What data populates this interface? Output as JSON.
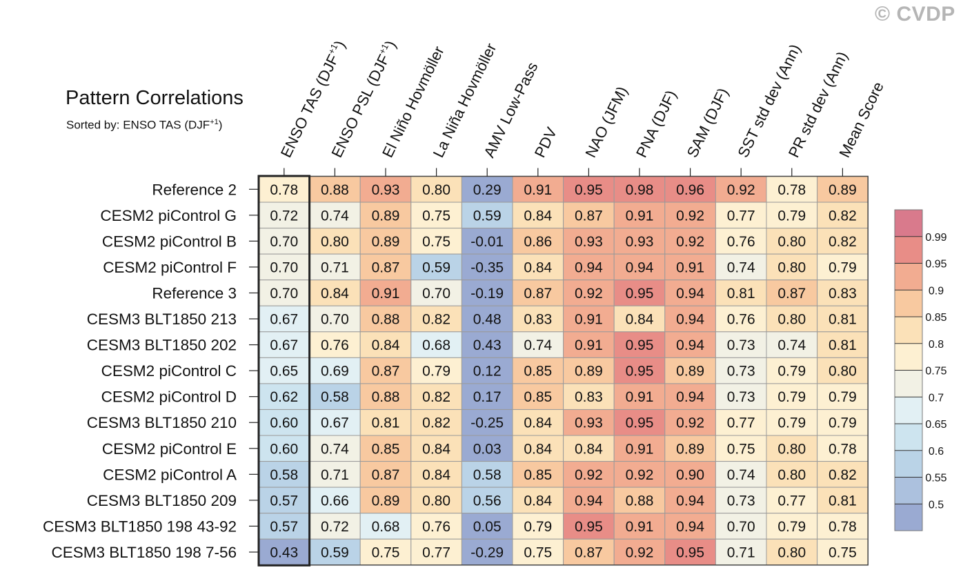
{
  "watermark": "© CVDP",
  "chart_data": {
    "type": "heatmap",
    "title": "Pattern Correlations",
    "subtitle_prefix": "Sorted by: ENSO TAS (DJF",
    "subtitle_sup": "+1",
    "subtitle_suffix": ")",
    "columns": [
      {
        "label": "ENSO TAS (DJF",
        "sup": "+1",
        "tail": ")"
      },
      {
        "label": "ENSO PSL (DJF",
        "sup": "+1",
        "tail": ")"
      },
      {
        "label": "El Niño Hovmöller",
        "sup": "",
        "tail": ""
      },
      {
        "label": "La Niña Hovmöller",
        "sup": "",
        "tail": ""
      },
      {
        "label": "AMV Low-Pass",
        "sup": "",
        "tail": ""
      },
      {
        "label": "PDV",
        "sup": "",
        "tail": ""
      },
      {
        "label": "NAO (JFM)",
        "sup": "",
        "tail": ""
      },
      {
        "label": "PNA (DJF)",
        "sup": "",
        "tail": ""
      },
      {
        "label": "SAM (DJF)",
        "sup": "",
        "tail": ""
      },
      {
        "label": "SST std dev (Ann)",
        "sup": "",
        "tail": ""
      },
      {
        "label": "PR std dev (Ann)",
        "sup": "",
        "tail": ""
      },
      {
        "label": "Mean Score",
        "sup": "",
        "tail": ""
      }
    ],
    "rows": [
      "Reference 2",
      "CESM2 piControl G",
      "CESM2 piControl B",
      "CESM2 piControl F",
      "Reference 3",
      "CESM3 BLT1850 213",
      "CESM3 BLT1850 202",
      "CESM2 piControl C",
      "CESM2 piControl D",
      "CESM3 BLT1850 210",
      "CESM2 piControl E",
      "CESM2 piControl A",
      "CESM3 BLT1850 209",
      "CESM3 BLT1850 198 43-92",
      "CESM3 BLT1850 198 7-56"
    ],
    "values": [
      [
        "0.78",
        "0.88",
        "0.93",
        "0.80",
        "0.29",
        "0.91",
        "0.95",
        "0.98",
        "0.96",
        "0.92",
        "0.78",
        "0.89"
      ],
      [
        "0.72",
        "0.74",
        "0.89",
        "0.75",
        "0.59",
        "0.84",
        "0.87",
        "0.91",
        "0.92",
        "0.77",
        "0.79",
        "0.82"
      ],
      [
        "0.70",
        "0.80",
        "0.89",
        "0.75",
        "-0.01",
        "0.86",
        "0.93",
        "0.93",
        "0.92",
        "0.76",
        "0.80",
        "0.82"
      ],
      [
        "0.70",
        "0.71",
        "0.87",
        "0.59",
        "-0.35",
        "0.84",
        "0.94",
        "0.94",
        "0.91",
        "0.74",
        "0.80",
        "0.79"
      ],
      [
        "0.70",
        "0.84",
        "0.91",
        "0.70",
        "-0.19",
        "0.87",
        "0.92",
        "0.95",
        "0.94",
        "0.81",
        "0.87",
        "0.83"
      ],
      [
        "0.67",
        "0.70",
        "0.88",
        "0.82",
        "0.48",
        "0.83",
        "0.91",
        "0.84",
        "0.94",
        "0.76",
        "0.80",
        "0.81"
      ],
      [
        "0.67",
        "0.76",
        "0.84",
        "0.68",
        "0.43",
        "0.74",
        "0.91",
        "0.95",
        "0.94",
        "0.73",
        "0.74",
        "0.81"
      ],
      [
        "0.65",
        "0.69",
        "0.87",
        "0.79",
        "0.12",
        "0.85",
        "0.89",
        "0.95",
        "0.89",
        "0.73",
        "0.79",
        "0.80"
      ],
      [
        "0.62",
        "0.58",
        "0.88",
        "0.82",
        "0.17",
        "0.85",
        "0.83",
        "0.91",
        "0.94",
        "0.73",
        "0.79",
        "0.79"
      ],
      [
        "0.60",
        "0.67",
        "0.81",
        "0.82",
        "-0.25",
        "0.84",
        "0.93",
        "0.95",
        "0.92",
        "0.77",
        "0.79",
        "0.79"
      ],
      [
        "0.60",
        "0.74",
        "0.85",
        "0.84",
        "0.03",
        "0.84",
        "0.84",
        "0.91",
        "0.89",
        "0.75",
        "0.80",
        "0.78"
      ],
      [
        "0.58",
        "0.71",
        "0.87",
        "0.84",
        "0.58",
        "0.85",
        "0.92",
        "0.92",
        "0.90",
        "0.74",
        "0.80",
        "0.82"
      ],
      [
        "0.57",
        "0.66",
        "0.89",
        "0.80",
        "0.56",
        "0.84",
        "0.94",
        "0.88",
        "0.94",
        "0.73",
        "0.77",
        "0.81"
      ],
      [
        "0.57",
        "0.72",
        "0.68",
        "0.76",
        "0.05",
        "0.79",
        "0.95",
        "0.91",
        "0.94",
        "0.70",
        "0.79",
        "0.78"
      ],
      [
        "0.43",
        "0.59",
        "0.75",
        "0.77",
        "-0.29",
        "0.75",
        "0.87",
        "0.92",
        "0.95",
        "0.71",
        "0.80",
        "0.75"
      ]
    ],
    "highlight_column": 0,
    "colorbar": {
      "levels": [
        "0.5",
        "0.55",
        "0.6",
        "0.65",
        "0.7",
        "0.75",
        "0.8",
        "0.85",
        "0.9",
        "0.95",
        "0.99"
      ],
      "colors": [
        "#9aaad2",
        "#acc1de",
        "#bad3e7",
        "#cde4ef",
        "#e2f0f4",
        "#f2f1e5",
        "#fdf0d2",
        "#fbe1b8",
        "#f8c9a0",
        "#f2ac91",
        "#e88d87",
        "#d97a8c"
      ]
    }
  }
}
